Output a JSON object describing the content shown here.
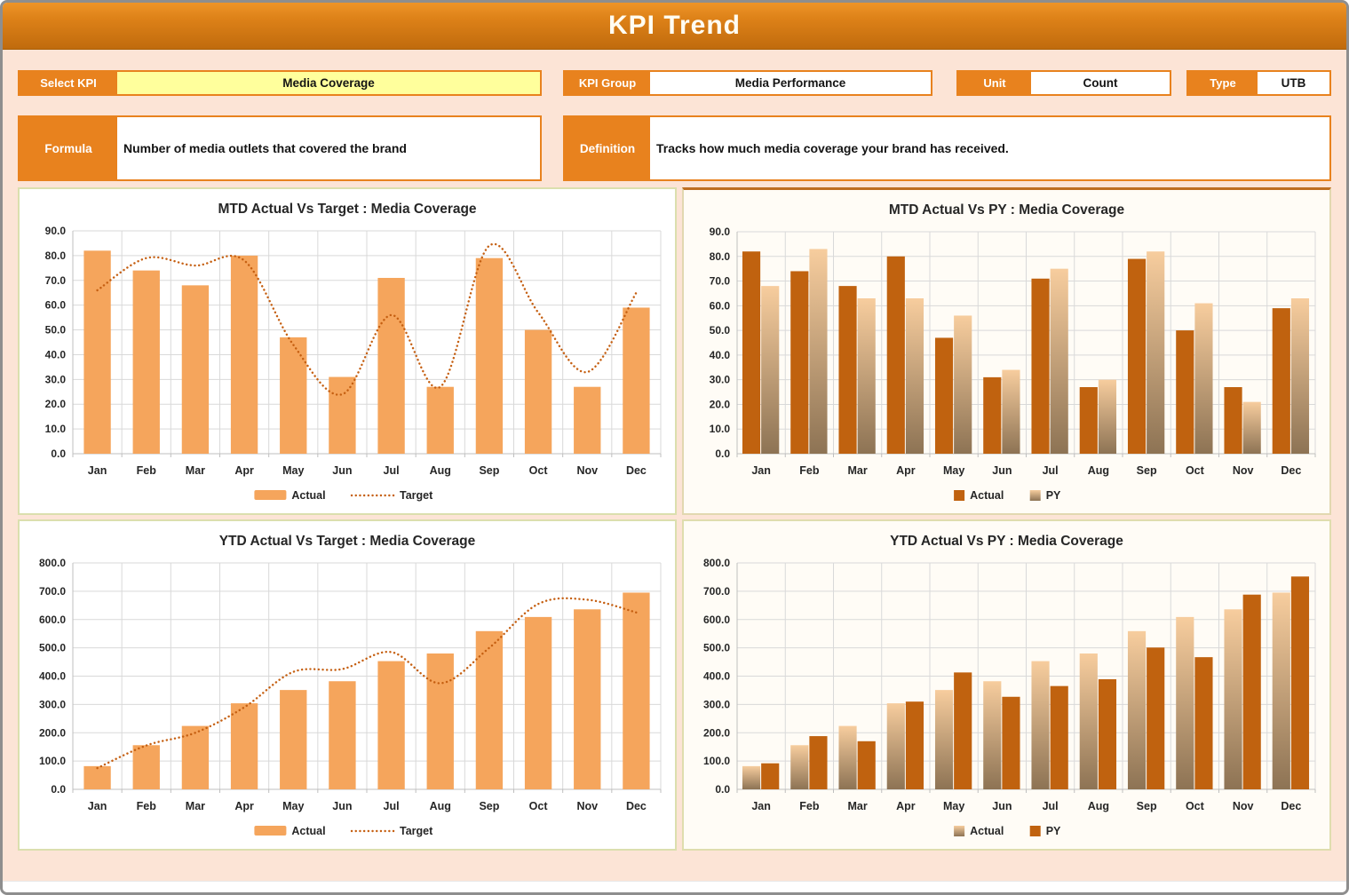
{
  "header": {
    "title": "KPI Trend"
  },
  "fields": {
    "select_kpi": {
      "label": "Select KPI",
      "value": "Media Coverage"
    },
    "kpi_group": {
      "label": "KPI Group",
      "value": "Media Performance"
    },
    "unit": {
      "label": "Unit",
      "value": "Count"
    },
    "type": {
      "label": "Type",
      "value": "UTB"
    },
    "formula": {
      "label": "Formula",
      "value": "Number of media outlets that covered the brand"
    },
    "definition": {
      "label": "Definition",
      "value": "Tracks how much media coverage your brand has received."
    }
  },
  "colors": {
    "header_gradient_top": "#EE9528",
    "header_gradient_bottom": "#C06B0D",
    "accent_orange": "#E8821E",
    "background_peach": "#FCE4D6",
    "yellow_field": "#FFFF9C",
    "bar_light": "#F5A55C",
    "bar_dark": "#C0620F",
    "target_line": "#C55F11",
    "gradient_bar_top": "#F7CD9E",
    "gradient_bar_bottom": "#8D7354",
    "gridline": "#D9D9D9",
    "axis": "#BFBFBF",
    "panel_border": "#DBDFAE",
    "window_border": "#8E8E8E"
  },
  "chart_data": [
    {
      "id": "mtd_target",
      "type": "combo",
      "title": "MTD Actual Vs Target : Media Coverage",
      "categories": [
        "Jan",
        "Feb",
        "Mar",
        "Apr",
        "May",
        "Jun",
        "Jul",
        "Aug",
        "Sep",
        "Oct",
        "Nov",
        "Dec"
      ],
      "series": [
        {
          "name": "Actual",
          "kind": "bar",
          "style": "solid-light",
          "values": [
            82,
            74,
            68,
            80,
            47,
            31,
            71,
            27,
            79,
            50,
            27,
            59
          ]
        },
        {
          "name": "Target",
          "kind": "line-dotted",
          "values": [
            66,
            79,
            76,
            78,
            44,
            24,
            56,
            27,
            84,
            57,
            33,
            65
          ]
        }
      ],
      "xlabel": "",
      "ylabel": "",
      "ylim": [
        0,
        90
      ],
      "ytick_step": 10,
      "grid": true,
      "legend_position": "bottom"
    },
    {
      "id": "mtd_py",
      "type": "bar",
      "title": "MTD Actual Vs PY : Media Coverage",
      "categories": [
        "Jan",
        "Feb",
        "Mar",
        "Apr",
        "May",
        "Jun",
        "Jul",
        "Aug",
        "Sep",
        "Oct",
        "Nov",
        "Dec"
      ],
      "series": [
        {
          "name": "Actual",
          "kind": "bar",
          "style": "solid-dark",
          "values": [
            82,
            74,
            68,
            80,
            47,
            31,
            71,
            27,
            79,
            50,
            27,
            59
          ]
        },
        {
          "name": "PY",
          "kind": "bar",
          "style": "gradient",
          "values": [
            68,
            83,
            63,
            63,
            56,
            34,
            75,
            30,
            82,
            61,
            21,
            63
          ]
        }
      ],
      "xlabel": "",
      "ylabel": "",
      "ylim": [
        0,
        90
      ],
      "ytick_step": 10,
      "grid": true,
      "legend_position": "bottom"
    },
    {
      "id": "ytd_target",
      "type": "combo",
      "title": "YTD Actual Vs Target : Media Coverage",
      "categories": [
        "Jan",
        "Feb",
        "Mar",
        "Apr",
        "May",
        "Jun",
        "Jul",
        "Aug",
        "Sep",
        "Oct",
        "Nov",
        "Dec"
      ],
      "series": [
        {
          "name": "Actual",
          "kind": "bar",
          "style": "solid-light",
          "values": [
            82,
            156,
            224,
            304,
            351,
            382,
            453,
            480,
            559,
            609,
            636,
            695
          ]
        },
        {
          "name": "Target",
          "kind": "line-dotted",
          "values": [
            75,
            155,
            200,
            290,
            415,
            425,
            485,
            375,
            500,
            655,
            670,
            625
          ]
        }
      ],
      "xlabel": "",
      "ylabel": "",
      "ylim": [
        0,
        800
      ],
      "ytick_step": 100,
      "grid": true,
      "legend_position": "bottom"
    },
    {
      "id": "ytd_py",
      "type": "bar",
      "title": "YTD Actual Vs PY : Media Coverage",
      "categories": [
        "Jan",
        "Feb",
        "Mar",
        "Apr",
        "May",
        "Jun",
        "Jul",
        "Aug",
        "Sep",
        "Oct",
        "Nov",
        "Dec"
      ],
      "series": [
        {
          "name": "Actual",
          "kind": "bar",
          "style": "gradient",
          "values": [
            82,
            156,
            224,
            304,
            351,
            382,
            453,
            480,
            559,
            609,
            636,
            695
          ]
        },
        {
          "name": "PY",
          "kind": "bar",
          "style": "solid-dark",
          "values": [
            92,
            188,
            170,
            310,
            413,
            327,
            365,
            389,
            501,
            467,
            688,
            752
          ]
        }
      ],
      "xlabel": "",
      "ylabel": "",
      "ylim": [
        0,
        800
      ],
      "ytick_step": 100,
      "grid": true,
      "legend_position": "bottom"
    }
  ]
}
